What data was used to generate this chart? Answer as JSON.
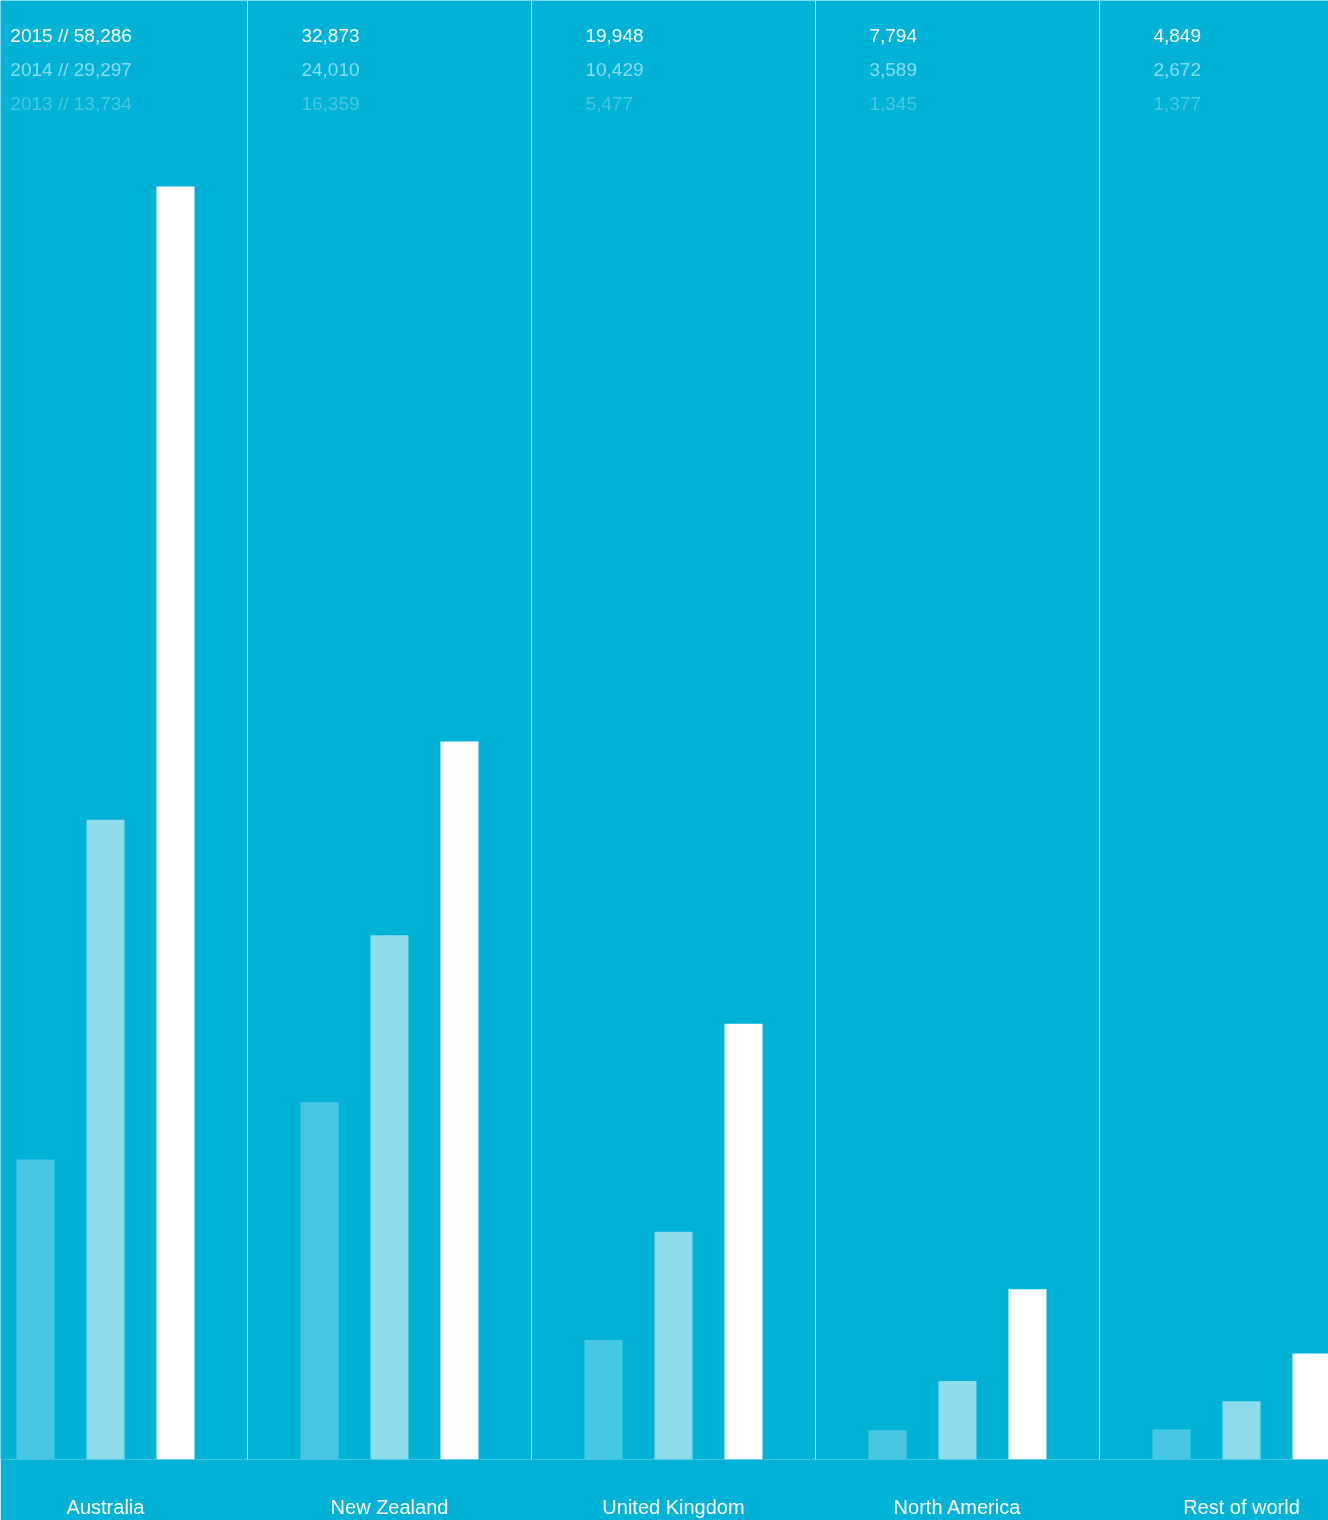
{
  "chart_data": {
    "type": "bar",
    "categories": [
      "Australia",
      "New Zealand",
      "United Kingdom",
      "North America",
      "Rest of world"
    ],
    "series": [
      {
        "color": "#48c8e2",
        "values": [
          13734,
          16359,
          5477,
          1345,
          1377
        ],
        "value_labels": [
          "2013 // 13,734",
          "16,359",
          "5,477",
          "1,345",
          "1,377"
        ]
      },
      {
        "color": "#8ddcec",
        "values": [
          29297,
          24010,
          10429,
          3589,
          2672
        ],
        "value_labels": [
          "2014 // 29,297",
          "24,010",
          "10,429",
          "3,589",
          "2,672"
        ]
      },
      {
        "color": "#ffffff",
        "values": [
          58286,
          32873,
          19948,
          7794,
          4849
        ],
        "value_labels": [
          "2015 // 58,286",
          "32,873",
          "19,948",
          "7,794",
          "4,849"
        ]
      }
    ],
    "grid": "x"
  }
}
